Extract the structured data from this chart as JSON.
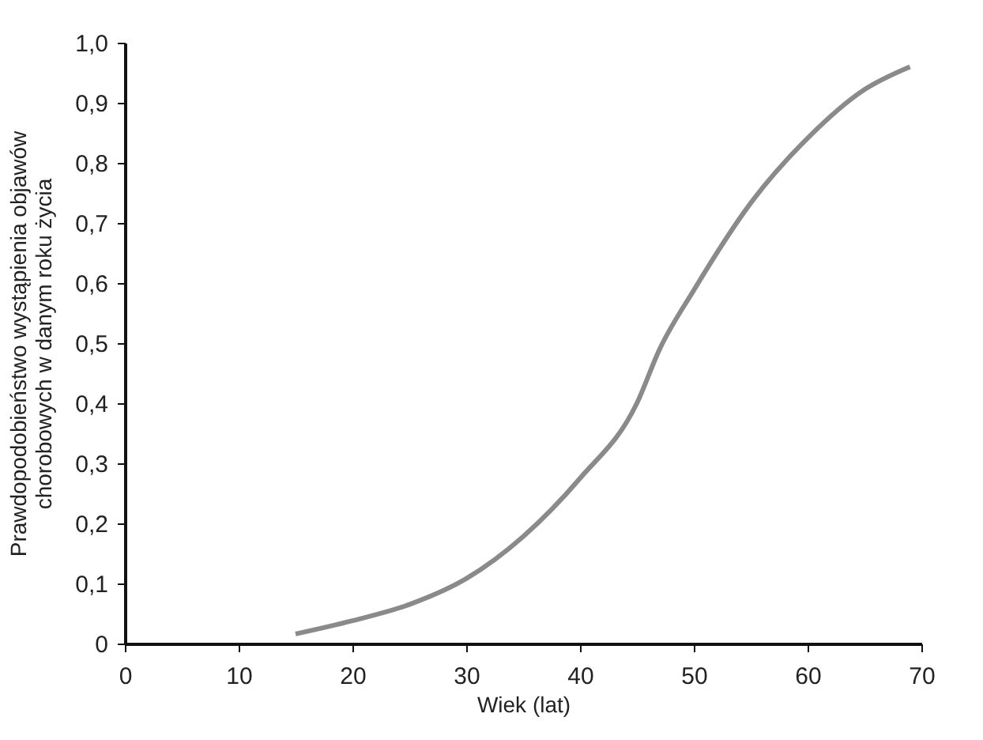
{
  "chart_data": {
    "type": "line",
    "xlabel": "Wiek (lat)",
    "ylabel": "Prawdopodobieństwo wystąpienia objawów\nchorobowych w danym roku życia",
    "x": [
      15,
      20,
      25,
      30,
      35,
      40,
      45,
      47,
      50,
      55,
      60,
      65,
      69
    ],
    "series": [
      {
        "color": "#8a8a8a",
        "values": [
          0.016,
          0.038,
          0.065,
          0.108,
          0.178,
          0.275,
          0.4,
          0.49,
          0.588,
          0.733,
          0.841,
          0.922,
          0.96
        ]
      }
    ],
    "xlim": [
      0,
      70
    ],
    "xticks": [
      0,
      10,
      20,
      30,
      40,
      50,
      60,
      70
    ],
    "ylim": [
      0,
      1.0
    ],
    "yticks": [
      0,
      {
        "value": 0.1,
        "label": "0,1"
      },
      {
        "value": 0.2,
        "label": "0,2"
      },
      {
        "value": 0.3,
        "label": "0,3"
      },
      {
        "value": 0.4,
        "label": "0,4"
      },
      {
        "value": 0.5,
        "label": "0,5"
      },
      {
        "value": 0.6,
        "label": "0,6"
      },
      {
        "value": 0.7,
        "label": "0,7"
      },
      {
        "value": 0.8,
        "label": "0,8"
      },
      {
        "value": 0.9,
        "label": "0,9"
      },
      {
        "value": 1.0,
        "label": "1,0"
      }
    ],
    "grid": false,
    "marker": "none",
    "line_style": "solid"
  }
}
